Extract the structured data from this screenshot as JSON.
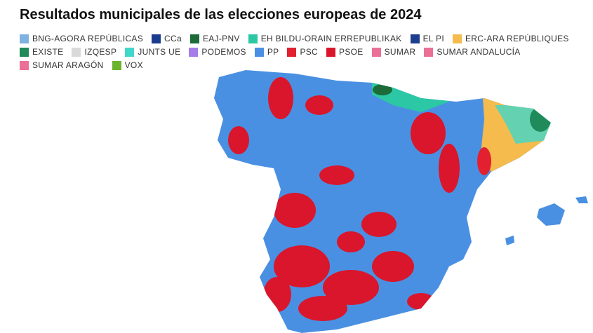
{
  "header": {
    "title": "Resultados municipales de las elecciones europeas de 2024"
  },
  "legend": [
    {
      "name": "BNG-AGORA REPÚBLICAS",
      "color": "#7fb2e0"
    },
    {
      "name": "CCa",
      "color": "#1b3b8f"
    },
    {
      "name": "EAJ-PNV",
      "color": "#1c6b38"
    },
    {
      "name": "EH BILDU-ORAIN ERREPUBLIKAK",
      "color": "#2cc7a4"
    },
    {
      "name": "EL PI",
      "color": "#1d3d8e"
    },
    {
      "name": "ERC-ARA REPÚBLIQUES",
      "color": "#f5bb4c"
    },
    {
      "name": "EXISTE",
      "color": "#1f8a5a"
    },
    {
      "name": "IZQESP",
      "color": "#d9d9d9"
    },
    {
      "name": "JUNTS UE",
      "color": "#40d8ca"
    },
    {
      "name": "PODEMOS",
      "color": "#a57ee9"
    },
    {
      "name": "PP",
      "color": "#4a90e2"
    },
    {
      "name": "PSC",
      "color": "#e2202f"
    },
    {
      "name": "PSOE",
      "color": "#d9162b"
    },
    {
      "name": "SUMAR",
      "color": "#ea7098"
    },
    {
      "name": "SUMAR ANDALUCÍA",
      "color": "#ea7098"
    },
    {
      "name": "SUMAR ARAGÓN",
      "color": "#ea7098"
    },
    {
      "name": "VOX",
      "color": "#6bb42f"
    }
  ]
}
